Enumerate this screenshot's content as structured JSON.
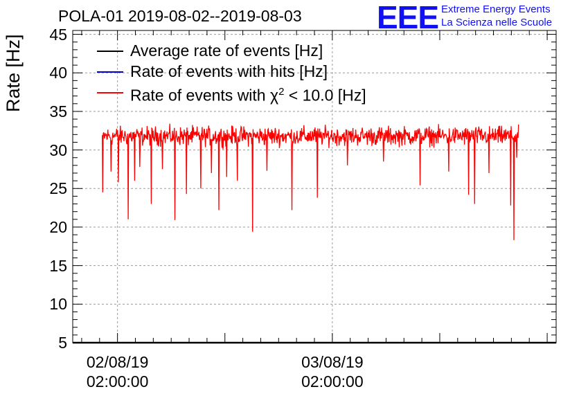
{
  "title": "POLA-01 2019-08-02--2019-08-03",
  "logo": {
    "mark": "EEE",
    "line1": "Extreme Energy Events",
    "line2": "La Scienza nelle Scuole",
    "color": "#1010f0"
  },
  "legend": [
    {
      "label": "Average rate of events [Hz]",
      "color": "#000000",
      "sup": "",
      "suffix": ""
    },
    {
      "label": "Rate of events with hits [Hz]",
      "color": "#0000cc",
      "sup": "",
      "suffix": ""
    },
    {
      "label": "Rate of events with χ",
      "color": "#ff0000",
      "sup": "2",
      "suffix": " < 10.0 [Hz]"
    }
  ],
  "chart_data": {
    "type": "line",
    "title": "POLA-01 2019-08-02--2019-08-03",
    "ylabel": "Rate [Hz]",
    "xlabel": "",
    "ylim": [
      5,
      45.5
    ],
    "xlim_hours": [
      -3.0,
      51.0
    ],
    "x_unit": "hours since 2019-08-02 00:00:00",
    "grid": true,
    "yticks": [
      "5",
      "10",
      "15",
      "20",
      "25",
      "30",
      "35",
      "40",
      "45"
    ],
    "xticks": [
      {
        "hour": 2,
        "date": "02/08/19",
        "time": "02:00:00"
      },
      {
        "hour": 26,
        "date": "03/08/19",
        "time": "02:00:00"
      }
    ],
    "series": [
      {
        "name": "Rate of events with χ2 < 10.0 [Hz]",
        "color": "#ff0000",
        "x_range_hours": [
          0.3,
          46.8
        ],
        "baseline": 31.7,
        "noise_band": [
          30.0,
          33.6
        ],
        "dips": [
          {
            "hour": 0.35,
            "value": 24.5
          },
          {
            "hour": 1.3,
            "value": 27.2
          },
          {
            "hour": 2.1,
            "value": 25.8
          },
          {
            "hour": 3.2,
            "value": 21.0
          },
          {
            "hour": 3.9,
            "value": 26.0
          },
          {
            "hour": 4.5,
            "value": 27.8
          },
          {
            "hour": 5.8,
            "value": 23.0
          },
          {
            "hour": 7.0,
            "value": 27.5
          },
          {
            "hour": 8.4,
            "value": 20.9
          },
          {
            "hour": 9.7,
            "value": 24.3
          },
          {
            "hour": 11.3,
            "value": 25.0
          },
          {
            "hour": 12.5,
            "value": 27.0
          },
          {
            "hour": 13.3,
            "value": 22.2
          },
          {
            "hour": 14.2,
            "value": 26.5
          },
          {
            "hour": 15.4,
            "value": 26.0
          },
          {
            "hour": 17.1,
            "value": 19.4
          },
          {
            "hour": 18.7,
            "value": 27.3
          },
          {
            "hour": 21.5,
            "value": 22.2
          },
          {
            "hour": 24.3,
            "value": 23.8
          },
          {
            "hour": 27.7,
            "value": 28.0
          },
          {
            "hour": 31.7,
            "value": 28.5
          },
          {
            "hour": 35.8,
            "value": 25.4
          },
          {
            "hour": 39.0,
            "value": 27.2
          },
          {
            "hour": 41.2,
            "value": 24.2
          },
          {
            "hour": 41.9,
            "value": 23.0
          },
          {
            "hour": 43.5,
            "value": 27.0
          },
          {
            "hour": 45.9,
            "value": 22.8
          },
          {
            "hour": 46.3,
            "value": 18.3
          },
          {
            "hour": 46.6,
            "value": 29.0
          }
        ]
      }
    ]
  }
}
